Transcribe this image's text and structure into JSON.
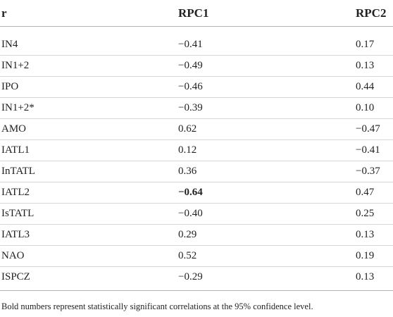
{
  "table": {
    "headers": [
      "r",
      "RPC1",
      "RPC2"
    ],
    "rows": [
      {
        "name": "IN4",
        "rpc1": "−0.41",
        "rpc2": "0.17"
      },
      {
        "name": "IN1+2",
        "rpc1": "−0.49",
        "rpc2": "0.13"
      },
      {
        "name": "IPO",
        "rpc1": "−0.46",
        "rpc2": "0.44"
      },
      {
        "name": "IN1+2*",
        "rpc1": "−0.39",
        "rpc2": "0.10"
      },
      {
        "name": "AMO",
        "rpc1": "0.62",
        "rpc2": "−0.47"
      },
      {
        "name": "IATL1",
        "rpc1": "0.12",
        "rpc2": "−0.41"
      },
      {
        "name": "InTATL",
        "rpc1": "0.36",
        "rpc2": "−0.37"
      },
      {
        "name": "IATL2",
        "rpc1": "−0.64",
        "rpc2": "0.47",
        "rpc1_bold": true
      },
      {
        "name": "IsTATL",
        "rpc1": "−0.40",
        "rpc2": "0.25"
      },
      {
        "name": "IATL3",
        "rpc1": "0.29",
        "rpc2": "0.13"
      },
      {
        "name": "NAO",
        "rpc1": "0.52",
        "rpc2": "0.19"
      },
      {
        "name": "ISPCZ",
        "rpc1": "−0.29",
        "rpc2": "0.13"
      }
    ],
    "footnote": "Bold numbers represent statistically significant correlations at the 95% confidence level."
  }
}
